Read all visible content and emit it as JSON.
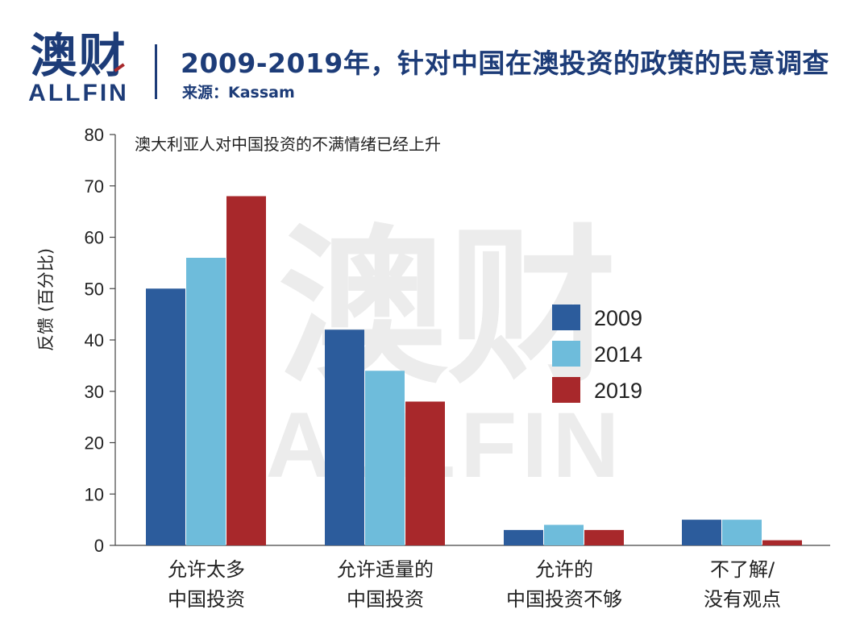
{
  "header": {
    "logo_cn": "澳财",
    "logo_en": "ALLFIN",
    "title": "2009-2019年，针对中国在澳投资的政策的民意调查",
    "source": "来源：Kassam"
  },
  "watermark": {
    "cn": "澳财",
    "en": "ALLFIN"
  },
  "colors": {
    "s2009": "#2c5c9c",
    "s2014": "#6ebcdb",
    "s2019": "#a8282b",
    "brand": "#1d3c78"
  },
  "chart_data": {
    "type": "bar",
    "title": "澳大利亚人对中国投资的不满情绪已经上升",
    "ylabel": "反馈 (百分比)",
    "xlabel": "",
    "ylim": [
      0,
      80
    ],
    "yticks": [
      0,
      10,
      20,
      30,
      40,
      50,
      60,
      70,
      80
    ],
    "categories": [
      [
        "允许太多",
        "中国投资"
      ],
      [
        "允许适量的",
        "中国投资"
      ],
      [
        "允许的",
        "中国投资不够"
      ],
      [
        "不了解/",
        "没有观点"
      ]
    ],
    "series": [
      {
        "name": "2009",
        "values": [
          50,
          42,
          3,
          5
        ]
      },
      {
        "name": "2014",
        "values": [
          56,
          34,
          4,
          5
        ]
      },
      {
        "name": "2019",
        "values": [
          68,
          28,
          3,
          1
        ]
      }
    ],
    "grid": false,
    "legend": "right-center"
  }
}
